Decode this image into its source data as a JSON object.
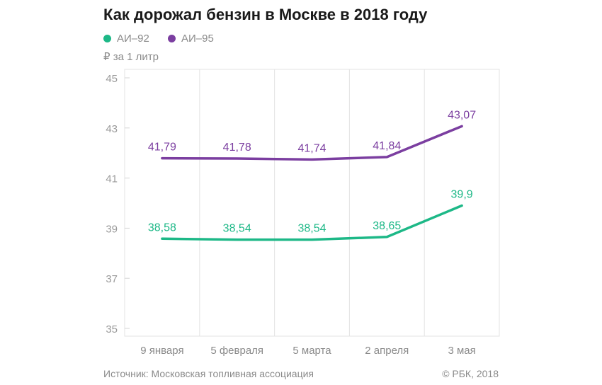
{
  "footer": {
    "source": "Источник: Московская топливная ассоциация",
    "copyright": "© РБК, 2018"
  },
  "chart_data": {
    "type": "line",
    "title": "Как дорожал бензин в Москве в 2018 году",
    "unit_label": "₽ за 1 литр",
    "xlabel": "",
    "ylabel": "",
    "categories": [
      "9 января",
      "5 февраля",
      "5 марта",
      "2 апреля",
      "3 мая"
    ],
    "ylim": [
      35,
      45
    ],
    "yticks": [
      35,
      37,
      39,
      41,
      43,
      45
    ],
    "grid": true,
    "legend_position": "top-left",
    "series": [
      {
        "name": "АИ–92",
        "color": "#1db887",
        "values": [
          38.58,
          38.54,
          38.54,
          38.65,
          39.9
        ],
        "labels": [
          "38,58",
          "38,54",
          "38,54",
          "38,65",
          "39,9"
        ]
      },
      {
        "name": "АИ–95",
        "color": "#7b3ea0",
        "values": [
          41.79,
          41.78,
          41.74,
          41.84,
          43.07
        ],
        "labels": [
          "41,79",
          "41,78",
          "41,74",
          "41,84",
          "43,07"
        ]
      }
    ]
  }
}
